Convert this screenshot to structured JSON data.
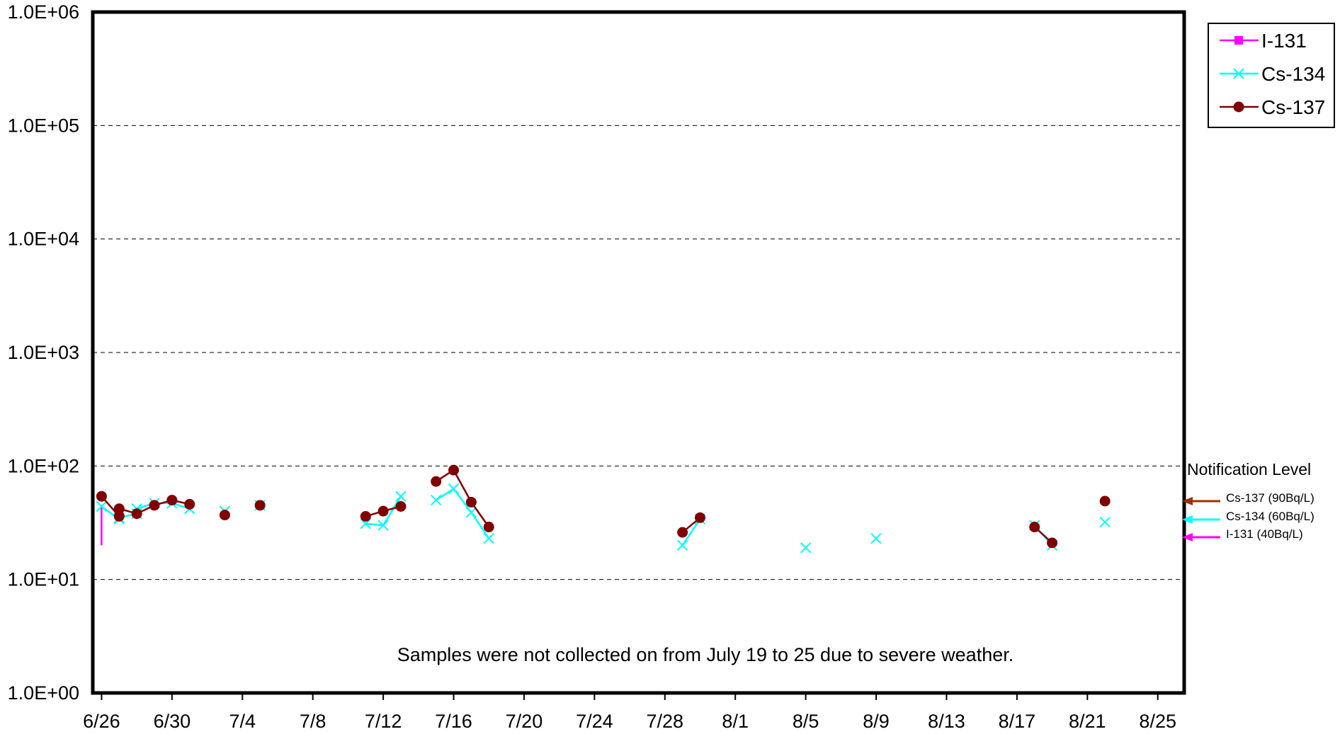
{
  "chart_data": {
    "type": "line",
    "yscale": "log",
    "ylim": [
      1,
      1000000
    ],
    "xlim": [
      "6/26",
      "8/26"
    ],
    "year": 2011,
    "y_tick_labels": [
      "1.0E+00",
      "1.0E+01",
      "1.0E+02",
      "1.0E+03",
      "1.0E+04",
      "1.0E+05",
      "1.0E+06"
    ],
    "x_tick_labels": [
      "6/26",
      "6/30",
      "7/4",
      "7/8",
      "7/12",
      "7/16",
      "7/20",
      "7/24",
      "7/28",
      "8/1",
      "8/5",
      "8/9",
      "8/13",
      "8/17",
      "8/21",
      "8/25"
    ],
    "grid": "horizontal-dashed",
    "legend_position": "top-right",
    "annotation": "Samples were not collected on  from July 19 to 25 due to severe weather.",
    "notification": {
      "title": "Notification Level",
      "levels": [
        {
          "label": "Cs-137 (90Bq/L)",
          "value": 90,
          "color": "#9c3000"
        },
        {
          "label": "Cs-134 (60Bq/L)",
          "value": 60,
          "color": "#00ffff"
        },
        {
          "label": "I-131 (40Bq/L)",
          "value": 40,
          "color": "#ff00ff"
        }
      ]
    },
    "series": [
      {
        "name": "I-131",
        "color": "#ff00ff",
        "marker": "square",
        "points": [
          {
            "x": "6/26",
            "y": 20
          },
          {
            "x": "6/26",
            "y": 45
          }
        ]
      },
      {
        "name": "Cs-134",
        "color": "#00ffff",
        "marker": "x",
        "points": [
          {
            "x": "6/26",
            "y": 44
          },
          {
            "x": "6/27",
            "y": 34
          },
          {
            "x": "6/27",
            "y": 35
          },
          {
            "x": "6/28",
            "y": 38
          },
          {
            "x": "6/28",
            "y": 42
          },
          {
            "x": "6/29",
            "y": 47
          },
          {
            "x": "6/30",
            "y": 47
          },
          {
            "x": "7/1",
            "y": 42
          },
          {
            "x": "7/3",
            "y": 40
          },
          {
            "x": "7/5",
            "y": 45
          },
          {
            "x": "7/11",
            "y": 31
          },
          {
            "x": "7/12",
            "y": 30
          },
          {
            "x": "7/13",
            "y": 54
          },
          {
            "x": "7/15",
            "y": 50
          },
          {
            "x": "7/16",
            "y": 63
          },
          {
            "x": "7/17",
            "y": 39
          },
          {
            "x": "7/18",
            "y": 23
          },
          {
            "x": "7/29",
            "y": 20
          },
          {
            "x": "7/30",
            "y": 34
          },
          {
            "x": "8/5",
            "y": 19
          },
          {
            "x": "8/9",
            "y": 23
          },
          {
            "x": "8/18",
            "y": 30
          },
          {
            "x": "8/19",
            "y": 20
          },
          {
            "x": "8/22",
            "y": 32
          }
        ]
      },
      {
        "name": "Cs-137",
        "color": "#800000",
        "marker": "circle",
        "points": [
          {
            "x": "6/26",
            "y": 54
          },
          {
            "x": "6/27",
            "y": 36
          },
          {
            "x": "6/27",
            "y": 42
          },
          {
            "x": "6/28",
            "y": 38
          },
          {
            "x": "6/29",
            "y": 45
          },
          {
            "x": "6/30",
            "y": 50
          },
          {
            "x": "7/1",
            "y": 46
          },
          {
            "x": "7/3",
            "y": 37
          },
          {
            "x": "7/5",
            "y": 45
          },
          {
            "x": "7/11",
            "y": 36
          },
          {
            "x": "7/12",
            "y": 40
          },
          {
            "x": "7/13",
            "y": 44
          },
          {
            "x": "7/15",
            "y": 73
          },
          {
            "x": "7/16",
            "y": 92
          },
          {
            "x": "7/17",
            "y": 48
          },
          {
            "x": "7/18",
            "y": 29
          },
          {
            "x": "7/29",
            "y": 26
          },
          {
            "x": "7/30",
            "y": 35
          },
          {
            "x": "8/18",
            "y": 29
          },
          {
            "x": "8/19",
            "y": 21
          },
          {
            "x": "8/22",
            "y": 49
          }
        ]
      }
    ]
  }
}
